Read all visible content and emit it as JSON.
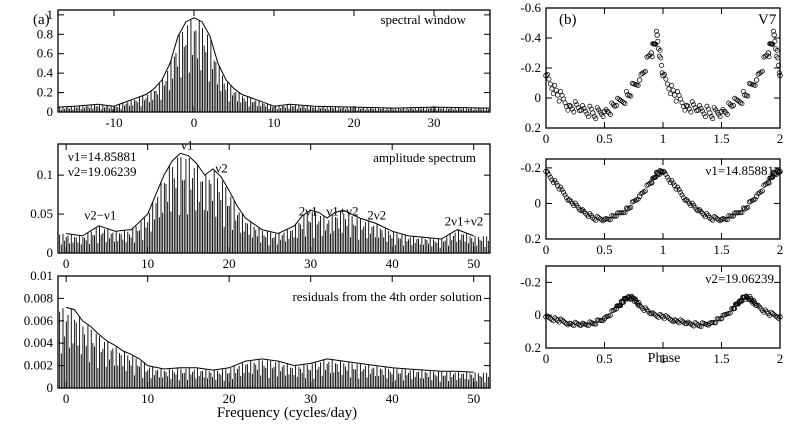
{
  "figure": {
    "left_label": "(a)",
    "right_label": "(b)",
    "xlabel_left": "Frequency (cycles/day)",
    "xlabel_right": "Phase",
    "star": "V7"
  },
  "chart_data": [
    {
      "id": "spectral_window",
      "type": "line",
      "title": "spectral window",
      "xlabel": "",
      "ylabel": "",
      "xlim": [
        -17,
        37
      ],
      "ylim": [
        0,
        1.05
      ],
      "xticks": [
        -10,
        0,
        10,
        20,
        30
      ],
      "yticks": [
        0,
        0.2,
        0.4,
        0.6,
        0.8,
        1
      ],
      "ytick_labels": [
        "0",
        "0.2",
        "0.4",
        "0.6",
        "0.8",
        "1"
      ],
      "series": [
        {
          "x": [
            -17,
            -15,
            -12,
            -10,
            -8,
            -6,
            -5,
            -4,
            -3,
            -2,
            -1,
            0,
            1,
            2,
            3,
            4,
            5,
            6,
            8,
            10,
            12,
            15,
            20,
            25,
            30,
            37
          ],
          "values": [
            0.05,
            0.06,
            0.08,
            0.06,
            0.12,
            0.18,
            0.24,
            0.33,
            0.5,
            0.78,
            0.93,
            0.97,
            0.93,
            0.78,
            0.5,
            0.33,
            0.24,
            0.18,
            0.12,
            0.06,
            0.08,
            0.06,
            0.05,
            0.04,
            0.05,
            0.04
          ]
        }
      ]
    },
    {
      "id": "amplitude_spectrum",
      "type": "line",
      "title": "amplitude spectrum",
      "xlabel": "",
      "ylabel": "",
      "xlim": [
        -1,
        52
      ],
      "ylim": [
        0,
        0.14
      ],
      "xticks": [
        0,
        10,
        20,
        30,
        40,
        50
      ],
      "yticks": [
        0,
        0.05,
        0.1
      ],
      "ytick_labels": [
        "0",
        "0.05",
        "0.1"
      ],
      "frequencies": [
        "ν1=14.85881",
        "ν2=19.06239"
      ],
      "annotations": [
        {
          "label": "ν1",
          "x": 14.86,
          "y": 0.128
        },
        {
          "label": "ν2",
          "x": 19.06,
          "y": 0.098
        },
        {
          "label": "ν2−ν1",
          "x": 4.2,
          "y": 0.038
        },
        {
          "label": "2ν1",
          "x": 29.7,
          "y": 0.043
        },
        {
          "label": "ν1+ν2",
          "x": 33.9,
          "y": 0.043
        },
        {
          "label": "2ν2",
          "x": 38.1,
          "y": 0.038
        },
        {
          "label": "2ν1+ν2",
          "x": 48.8,
          "y": 0.03
        }
      ],
      "series": [
        {
          "x": [
            0,
            2,
            4,
            6,
            8,
            10,
            11,
            12,
            13,
            14,
            15,
            16,
            17,
            18,
            19,
            20,
            21,
            22,
            24,
            26,
            28,
            29,
            30,
            31,
            32,
            33,
            34,
            35,
            36,
            38,
            40,
            42,
            44,
            46,
            48,
            50
          ],
          "values": [
            0.025,
            0.022,
            0.035,
            0.028,
            0.03,
            0.05,
            0.075,
            0.1,
            0.118,
            0.128,
            0.125,
            0.115,
            0.1,
            0.108,
            0.098,
            0.08,
            0.06,
            0.045,
            0.03,
            0.025,
            0.035,
            0.048,
            0.055,
            0.052,
            0.045,
            0.052,
            0.055,
            0.05,
            0.045,
            0.038,
            0.028,
            0.022,
            0.02,
            0.018,
            0.03,
            0.022
          ]
        }
      ]
    },
    {
      "id": "residuals",
      "type": "line",
      "title": "residuals from the 4th order solution",
      "xlabel": "Frequency (cycles/day)",
      "ylabel": "",
      "xlim": [
        -1,
        52
      ],
      "ylim": [
        0,
        0.01
      ],
      "xticks": [
        0,
        10,
        20,
        30,
        40,
        50
      ],
      "yticks": [
        0,
        0.002,
        0.004,
        0.006,
        0.008,
        0.01
      ],
      "ytick_labels": [
        "0",
        "0.002",
        "0.004",
        "0.006",
        "0.008",
        "0.01"
      ],
      "series": [
        {
          "x": [
            0,
            1,
            2,
            3,
            4,
            5,
            6,
            7,
            8,
            9,
            10,
            12,
            14,
            16,
            18,
            20,
            22,
            24,
            26,
            28,
            30,
            32,
            34,
            36,
            38,
            40,
            42,
            44,
            46,
            48,
            50
          ],
          "values": [
            0.0072,
            0.007,
            0.006,
            0.0055,
            0.0048,
            0.0042,
            0.0038,
            0.0033,
            0.003,
            0.0026,
            0.002,
            0.0017,
            0.0018,
            0.0018,
            0.0016,
            0.0018,
            0.0024,
            0.0026,
            0.0024,
            0.002,
            0.0022,
            0.0026,
            0.0024,
            0.0022,
            0.002,
            0.0018,
            0.0017,
            0.0016,
            0.0015,
            0.0015,
            0.0014
          ]
        }
      ]
    },
    {
      "id": "phase_all",
      "type": "scatter",
      "label": "V7",
      "xlabel": "",
      "ylabel": "",
      "xlim": [
        0,
        2
      ],
      "ylim": [
        0.2,
        -0.6
      ],
      "xticks": [
        0,
        0.5,
        1,
        1.5,
        2
      ],
      "xtick_labels": [
        "0",
        "0.5",
        "1",
        "1.5",
        "2"
      ],
      "yticks": [
        0.2,
        0,
        -0.2,
        -0.4,
        -0.6
      ],
      "ytick_labels": [
        "0.2",
        "0",
        "-0.2",
        "-0.4",
        "-0.6"
      ],
      "series": [
        {
          "x": [
            0.0,
            0.1,
            0.2,
            0.3,
            0.4,
            0.5,
            0.6,
            0.7,
            0.8,
            0.9,
            0.95,
            1.0,
            1.1,
            1.2,
            1.3,
            1.4,
            1.5,
            1.6,
            1.7,
            1.8,
            1.9,
            1.95,
            2.0
          ],
          "values": [
            -0.15,
            -0.02,
            0.05,
            0.08,
            0.1,
            0.09,
            0.05,
            -0.02,
            -0.12,
            -0.3,
            -0.42,
            -0.15,
            -0.02,
            0.05,
            0.08,
            0.1,
            0.09,
            0.05,
            -0.02,
            -0.12,
            -0.3,
            -0.42,
            -0.15
          ]
        }
      ]
    },
    {
      "id": "phase_nu1",
      "type": "scatter",
      "label": "ν1=14.85881",
      "xlabel": "",
      "ylabel": "",
      "xlim": [
        0,
        2
      ],
      "ylim": [
        0.2,
        -0.25
      ],
      "xticks": [
        0,
        0.5,
        1,
        1.5,
        2
      ],
      "xtick_labels": [
        "0",
        "0.5",
        "1",
        "1.5",
        "2"
      ],
      "yticks": [
        0.2,
        0,
        -0.2
      ],
      "ytick_labels": [
        "0.2",
        "0",
        "-0.2"
      ],
      "series": [
        {
          "x": [
            0.0,
            0.1,
            0.2,
            0.3,
            0.4,
            0.5,
            0.6,
            0.7,
            0.8,
            0.9,
            0.95,
            1.0,
            1.1,
            1.2,
            1.3,
            1.4,
            1.5,
            1.6,
            1.7,
            1.8,
            1.9,
            1.95,
            2.0
          ],
          "values": [
            -0.18,
            -0.1,
            -0.02,
            0.04,
            0.08,
            0.09,
            0.07,
            0.03,
            -0.04,
            -0.12,
            -0.17,
            -0.18,
            -0.1,
            -0.02,
            0.04,
            0.08,
            0.09,
            0.07,
            0.03,
            -0.04,
            -0.12,
            -0.17,
            -0.18
          ]
        }
      ]
    },
    {
      "id": "phase_nu2",
      "type": "scatter",
      "label": "ν2=19.06239",
      "xlabel": "Phase",
      "ylabel": "",
      "xlim": [
        0,
        2
      ],
      "ylim": [
        0.2,
        -0.3
      ],
      "xticks": [
        0,
        0.5,
        1,
        1.5,
        2
      ],
      "xtick_labels": [
        "0",
        "0.5",
        "1",
        "1.5",
        "2"
      ],
      "yticks": [
        0.2,
        0,
        -0.2
      ],
      "ytick_labels": [
        "0.2",
        "0",
        "-0.2"
      ],
      "series": [
        {
          "x": [
            0.0,
            0.1,
            0.2,
            0.3,
            0.4,
            0.5,
            0.6,
            0.65,
            0.7,
            0.75,
            0.8,
            0.9,
            1.0,
            1.1,
            1.2,
            1.3,
            1.4,
            1.5,
            1.6,
            1.65,
            1.7,
            1.75,
            1.8,
            1.9,
            2.0
          ],
          "values": [
            0.01,
            0.03,
            0.05,
            0.06,
            0.05,
            0.02,
            -0.04,
            -0.08,
            -0.11,
            -0.1,
            -0.06,
            -0.01,
            0.01,
            0.03,
            0.05,
            0.06,
            0.05,
            0.02,
            -0.04,
            -0.08,
            -0.11,
            -0.1,
            -0.06,
            -0.01,
            0.01
          ]
        }
      ]
    }
  ]
}
